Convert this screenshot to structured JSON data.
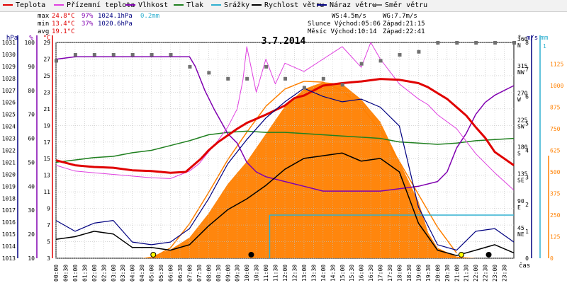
{
  "legend": [
    {
      "label": "Teplota",
      "color": "#e00000"
    },
    {
      "label": "Přízemní teplota",
      "color": "#e040e0"
    },
    {
      "label": "Vlhkost",
      "color": "#8000b0"
    },
    {
      "label": "Tlak",
      "color": "#208020"
    },
    {
      "label": "Srážky",
      "color": "#30b0d0"
    },
    {
      "label": "Rychlost větru",
      "color": "#000000"
    },
    {
      "label": "Náraz větru",
      "color": "#000080"
    },
    {
      "label": "Směr větru",
      "color": "#707070"
    }
  ],
  "stats": {
    "max_label": "max",
    "max_temp": "24.8°C",
    "max_hum": "97%",
    "max_press": "1024.1hPa",
    "max_rain": "0.2mm",
    "min_label": "min",
    "min_temp": "13.4°C",
    "min_hum": "37%",
    "min_press": "1020.6hPa",
    "avg_label": "avg",
    "avg_temp": "19.1°C",
    "ws": "WS:4.5m/s",
    "wg": "WG:7.7m/s",
    "sun": "Slunce Východ:05:06",
    "sun_set": "Západ:21:15",
    "moon": "Měsíc Východ:10:14",
    "moon_set": "Západ:22:41"
  },
  "colors": {
    "temp": "#e00000",
    "ground_temp": "#e040e0",
    "humidity": "#8000b0",
    "pressure": "#208020",
    "rain": "#30b0d0",
    "wind": "#000000",
    "gust": "#000080",
    "winddir": "#707070",
    "solar": "#ff8000",
    "solar_theory": "#ff8000",
    "grid": "#c0c0c0"
  },
  "chart_data": {
    "type": "line",
    "title": "3.7.2014",
    "x_ticks": [
      "00:00",
      "00:30",
      "01:00",
      "01:30",
      "02:00",
      "02:30",
      "03:00",
      "03:30",
      "04:00",
      "04:30",
      "05:00",
      "05:30",
      "06:00",
      "06:30",
      "07:00",
      "07:30",
      "08:00",
      "08:30",
      "09:00",
      "09:30",
      "10:00",
      "10:30",
      "11:00",
      "11:30",
      "12:00",
      "12:30",
      "13:00",
      "13:30",
      "14:00",
      "14:30",
      "15:00",
      "15:30",
      "16:00",
      "16:30",
      "17:00",
      "17:30",
      "18:00",
      "18:30",
      "19:00",
      "19:30",
      "20:00",
      "20:30",
      "21:00",
      "21:30",
      "22:00",
      "22:30",
      "23:00",
      "23:30"
    ],
    "x_axis_label": "čas",
    "axes": {
      "hpa": {
        "label": "hPa",
        "range": [
          1013,
          1031
        ],
        "ticks": [
          1013,
          1014,
          1015,
          1016,
          1017,
          1018,
          1019,
          1020,
          1021,
          1022,
          1023,
          1024,
          1025,
          1026,
          1027,
          1028,
          1029,
          1030,
          1031
        ]
      },
      "pct": {
        "label": "%",
        "range": [
          10,
          100
        ],
        "ticks": [
          10,
          20,
          30,
          40,
          50,
          60,
          70,
          80,
          90,
          100
        ]
      },
      "temp": {
        "label": "°C",
        "range": [
          3,
          29
        ],
        "ticks": [
          3,
          5,
          7,
          9,
          11,
          13,
          15,
          17,
          19,
          21,
          23,
          25,
          27,
          29
        ]
      },
      "dir": {
        "label": "°",
        "range": [
          0,
          360
        ],
        "ticks": [
          {
            "v": 0,
            "d": "",
            "t": "0"
          },
          {
            "v": 45,
            "d": "NE",
            "t": "45"
          },
          {
            "v": 90,
            "d": "E",
            "t": "90"
          },
          {
            "v": 135,
            "d": "SE",
            "t": "135"
          },
          {
            "v": 180,
            "d": "S",
            "t": "180"
          },
          {
            "v": 225,
            "d": "SW",
            "t": "225"
          },
          {
            "v": 270,
            "d": "W",
            "t": "270"
          },
          {
            "v": 315,
            "d": "NW",
            "t": "315"
          },
          {
            "v": 360,
            "d": "N",
            "t": "360"
          }
        ]
      },
      "ms": {
        "label": "m/s",
        "range": [
          0,
          8
        ],
        "ticks": [
          0,
          1,
          2,
          3,
          4,
          5,
          6,
          7,
          8
        ]
      },
      "mm": {
        "label": "mm",
        "range": [
          0,
          1
        ],
        "ticks": [
          0,
          1
        ]
      },
      "wm2": {
        "label": "",
        "range": [
          0,
          1250
        ],
        "ticks": [
          0,
          125,
          250,
          375,
          500,
          625,
          750,
          875,
          1000,
          1125
        ]
      }
    },
    "series": [
      {
        "name": "Teplota",
        "axis": "temp",
        "x": [
          0,
          1,
          2,
          3,
          4,
          5,
          6,
          6.8,
          7.2,
          7.6,
          8,
          8.5,
          9,
          9.5,
          10,
          11,
          12,
          12.5,
          13,
          13.5,
          14,
          15,
          16,
          17,
          18,
          18.5,
          19,
          19.5,
          20,
          20.5,
          21,
          21.5,
          22,
          22.5,
          23,
          24
        ],
        "y": [
          14.8,
          14.2,
          14.0,
          13.9,
          13.6,
          13.5,
          13.3,
          13.4,
          14.2,
          15.0,
          16.0,
          17.0,
          17.8,
          18.6,
          19.3,
          20.3,
          21.4,
          22.3,
          22.6,
          23.2,
          23.8,
          24.1,
          24.3,
          24.6,
          24.5,
          24.3,
          24.1,
          23.6,
          22.9,
          22.2,
          21.2,
          20.2,
          18.8,
          17.5,
          15.8,
          14.2
        ]
      },
      {
        "name": "Přízemní teplota",
        "axis": "temp",
        "x": [
          0,
          1,
          2,
          3,
          4,
          5,
          6,
          7,
          7.5,
          8,
          8.5,
          9,
          9.5,
          9.8,
          10,
          10.5,
          11,
          11.5,
          12,
          13,
          14,
          15,
          16,
          16.5,
          17,
          18,
          19,
          19.5,
          20,
          21,
          22,
          23,
          24
        ],
        "y": [
          14.2,
          13.5,
          13.3,
          13.1,
          12.9,
          12.7,
          12.6,
          13.5,
          14.4,
          15.8,
          17.2,
          18.8,
          21.0,
          24.5,
          28.5,
          23.0,
          27.0,
          24.0,
          26.5,
          25.5,
          27.0,
          28.5,
          26.0,
          29.0,
          27.0,
          24.0,
          22.2,
          21.5,
          20.3,
          18.6,
          15.6,
          13.3,
          11.2
        ]
      },
      {
        "name": "Vlhkost",
        "axis": "pct",
        "x": [
          0,
          1,
          2,
          3,
          4,
          5,
          6,
          7,
          7.3,
          7.8,
          8.3,
          9,
          9.5,
          10,
          10.5,
          11,
          12,
          13,
          14,
          15,
          16,
          17,
          18,
          19,
          20,
          20.5,
          21,
          21.5,
          22,
          22.5,
          23,
          24
        ],
        "y": [
          93,
          94,
          94,
          94,
          94,
          94,
          94,
          94,
          90,
          80,
          72,
          62,
          58,
          50,
          46,
          44,
          42,
          40,
          38,
          38,
          38,
          38,
          39,
          40,
          42,
          46,
          56,
          62,
          70,
          75,
          78,
          82
        ]
      },
      {
        "name": "Tlak",
        "axis": "hpa",
        "x": [
          0,
          1,
          2,
          3,
          4,
          5,
          6,
          7,
          8,
          9,
          10,
          11,
          12,
          13,
          14,
          15,
          16,
          17,
          18,
          19,
          20,
          21,
          22,
          23,
          24
        ],
        "y": [
          1021.0,
          1021.2,
          1021.4,
          1021.5,
          1021.8,
          1022.0,
          1022.4,
          1022.8,
          1023.3,
          1023.5,
          1023.6,
          1023.5,
          1023.5,
          1023.4,
          1023.3,
          1023.2,
          1023.1,
          1023.0,
          1022.7,
          1022.6,
          1022.5,
          1022.6,
          1022.8,
          1022.9,
          1023.0
        ]
      },
      {
        "name": "Rychlost větru",
        "axis": "ms",
        "x": [
          0,
          1,
          2,
          3,
          4,
          5,
          6,
          7,
          8,
          9,
          10,
          11,
          12,
          13,
          14,
          15,
          16,
          17,
          18,
          19,
          20,
          21,
          22,
          23,
          24
        ],
        "y": [
          0.7,
          0.8,
          1.0,
          0.9,
          0.4,
          0.4,
          0.3,
          0.5,
          1.2,
          1.8,
          2.2,
          2.7,
          3.3,
          3.7,
          3.8,
          3.9,
          3.6,
          3.7,
          3.2,
          1.3,
          0.3,
          0.1,
          0.3,
          0.5,
          0.2
        ]
      },
      {
        "name": "Náraz větru",
        "axis": "ms",
        "x": [
          0,
          1,
          2,
          3,
          4,
          5,
          6,
          7,
          8,
          9,
          10,
          11,
          12,
          13,
          14,
          15,
          16,
          17,
          18,
          19,
          20,
          21,
          22,
          23,
          24
        ],
        "y": [
          1.4,
          1.0,
          1.3,
          1.4,
          0.6,
          0.5,
          0.6,
          1.1,
          2.2,
          3.5,
          4.4,
          5.2,
          5.8,
          6.3,
          6.0,
          5.8,
          5.9,
          5.6,
          4.9,
          1.9,
          0.5,
          0.3,
          1.0,
          1.1,
          0.6
        ]
      },
      {
        "name": "Směr větru",
        "axis": "dir",
        "x": [
          0,
          1,
          2,
          3,
          4,
          5,
          6,
          7,
          8,
          9,
          10,
          11,
          12,
          13,
          14,
          15,
          16,
          17,
          18,
          19,
          20,
          21,
          22,
          23,
          24
        ],
        "y": [
          330,
          340,
          340,
          340,
          340,
          340,
          340,
          320,
          310,
          300,
          300,
          320,
          300,
          285,
          300,
          290,
          325,
          330,
          340,
          345,
          360,
          360,
          360,
          360,
          360
        ]
      }
    ],
    "solar_radiation": {
      "x": [
        0,
        4.5,
        5,
        6,
        7,
        8,
        9,
        10,
        11,
        12,
        13,
        14,
        15,
        16,
        17,
        18,
        19,
        19.5,
        20,
        21,
        22,
        24
      ],
      "y": [
        0,
        0,
        10,
        50,
        120,
        260,
        430,
        560,
        720,
        880,
        980,
        1020,
        1010,
        920,
        790,
        560,
        330,
        150,
        60,
        10,
        0,
        0
      ]
    },
    "solar_theory": {
      "x": [
        5,
        6,
        7,
        8,
        9,
        10,
        11,
        12,
        13,
        14,
        15,
        16,
        17,
        18,
        19,
        20,
        21
      ],
      "y": [
        0,
        60,
        200,
        380,
        570,
        730,
        880,
        980,
        1025,
        1020,
        970,
        880,
        740,
        560,
        370,
        180,
        30
      ]
    },
    "rain": {
      "x": [
        11.2,
        24
      ],
      "y": [
        0.2,
        0.2
      ]
    },
    "markers": [
      {
        "type": "sunrise",
        "time": "05:06",
        "color": "#ffff00"
      },
      {
        "type": "moonrise",
        "time": "10:14",
        "color": "#000000"
      },
      {
        "type": "sunset",
        "time": "21:15",
        "color": "#ffff00"
      },
      {
        "type": "moonset",
        "time": "22:41",
        "color": "#000000"
      }
    ]
  }
}
